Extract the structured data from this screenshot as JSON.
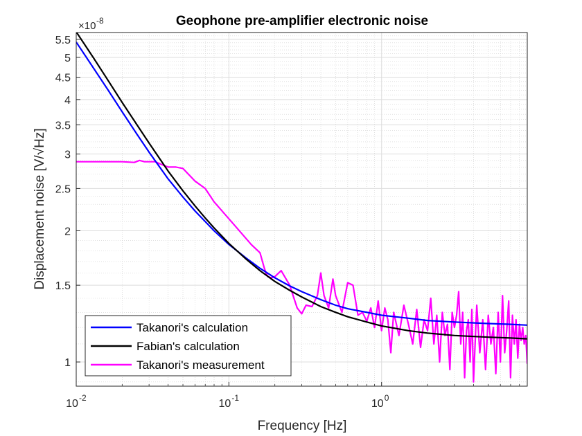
{
  "chart_data": {
    "type": "line",
    "title": "Geophone pre-amplifier electronic noise",
    "xlabel": "Frequency [Hz]",
    "ylabel": "Displacement noise [V/√Hz]",
    "y_exponent_base": "×10",
    "y_exponent_power": "-8",
    "x_scale": "log",
    "y_scale": "log",
    "xlim": [
      0.01,
      9
    ],
    "ylim": [
      0.88,
      5.7
    ],
    "x_ticks": [
      {
        "value": 0.01,
        "base": "10",
        "power": "-2"
      },
      {
        "value": 0.1,
        "base": "10",
        "power": "-1"
      },
      {
        "value": 1,
        "base": "10",
        "power": "0"
      }
    ],
    "y_ticks": [
      {
        "value": 1,
        "label": "1"
      },
      {
        "value": 1.5,
        "label": "1.5"
      },
      {
        "value": 2,
        "label": "2"
      },
      {
        "value": 2.5,
        "label": "2.5"
      },
      {
        "value": 3,
        "label": "3"
      },
      {
        "value": 3.5,
        "label": "3.5"
      },
      {
        "value": 4,
        "label": "4"
      },
      {
        "value": 4.5,
        "label": "4.5"
      },
      {
        "value": 5,
        "label": "5"
      },
      {
        "value": 5.5,
        "label": "5.5"
      }
    ],
    "grid": true,
    "minor_grid": true,
    "legend_position": "bottom-left",
    "series": [
      {
        "name": "Takanori's calculation",
        "color": "#0000ff",
        "x": [
          0.01,
          0.013,
          0.016,
          0.02,
          0.025,
          0.03,
          0.04,
          0.05,
          0.06,
          0.07,
          0.08,
          0.1,
          0.13,
          0.16,
          0.2,
          0.25,
          0.3,
          0.4,
          0.5,
          0.6,
          0.8,
          1,
          1.5,
          2,
          3,
          5,
          7,
          9
        ],
        "y": [
          5.42,
          4.72,
          4.23,
          3.75,
          3.33,
          3.03,
          2.63,
          2.39,
          2.22,
          2.1,
          2.0,
          1.86,
          1.73,
          1.64,
          1.56,
          1.495,
          1.45,
          1.39,
          1.35,
          1.325,
          1.3,
          1.28,
          1.26,
          1.245,
          1.235,
          1.225,
          1.22,
          1.215
        ]
      },
      {
        "name": "Fabian's calculation",
        "color": "#000000",
        "x": [
          0.01,
          0.013,
          0.016,
          0.02,
          0.025,
          0.03,
          0.04,
          0.05,
          0.06,
          0.07,
          0.08,
          0.1,
          0.13,
          0.16,
          0.2,
          0.25,
          0.3,
          0.4,
          0.5,
          0.6,
          0.8,
          1,
          1.5,
          2,
          3,
          5,
          7,
          9
        ],
        "y": [
          5.72,
          4.98,
          4.45,
          3.94,
          3.5,
          3.18,
          2.74,
          2.47,
          2.28,
          2.14,
          2.03,
          1.87,
          1.72,
          1.62,
          1.53,
          1.46,
          1.41,
          1.34,
          1.3,
          1.27,
          1.235,
          1.21,
          1.18,
          1.165,
          1.15,
          1.14,
          1.135,
          1.13
        ]
      },
      {
        "name": "Takanori's measurement",
        "color": "#ff00ff",
        "x": [
          0.01,
          0.015,
          0.02,
          0.024,
          0.026,
          0.028,
          0.033,
          0.036,
          0.04,
          0.045,
          0.05,
          0.06,
          0.07,
          0.08,
          0.1,
          0.12,
          0.14,
          0.16,
          0.17,
          0.175,
          0.18,
          0.19,
          0.2,
          0.22,
          0.25,
          0.28,
          0.3,
          0.32,
          0.35,
          0.38,
          0.4,
          0.42,
          0.45,
          0.48,
          0.5,
          0.55,
          0.6,
          0.65,
          0.7,
          0.75,
          0.8,
          0.85,
          0.9,
          0.95,
          1.0,
          1.05,
          1.1,
          1.15,
          1.2,
          1.3,
          1.4,
          1.5,
          1.6,
          1.7,
          1.8,
          1.9,
          2.0,
          2.1,
          2.2,
          2.3,
          2.4,
          2.5,
          2.6,
          2.7,
          2.8,
          2.9,
          3.0,
          3.1,
          3.2,
          3.3,
          3.4,
          3.5,
          3.6,
          3.7,
          3.8,
          3.9,
          4.0,
          4.2,
          4.4,
          4.6,
          4.8,
          5.0,
          5.2,
          5.4,
          5.6,
          5.8,
          6.0,
          6.2,
          6.4,
          6.6,
          6.8,
          7.0,
          7.2,
          7.4,
          7.6,
          7.8,
          8.0,
          8.2,
          8.4,
          8.6,
          8.8,
          9.0
        ],
        "y": [
          2.88,
          2.88,
          2.88,
          2.87,
          2.9,
          2.88,
          2.88,
          2.84,
          2.8,
          2.8,
          2.78,
          2.6,
          2.5,
          2.33,
          2.13,
          1.98,
          1.86,
          1.78,
          1.65,
          1.6,
          1.57,
          1.56,
          1.57,
          1.62,
          1.5,
          1.33,
          1.29,
          1.35,
          1.34,
          1.42,
          1.6,
          1.42,
          1.33,
          1.55,
          1.42,
          1.3,
          1.52,
          1.5,
          1.28,
          1.3,
          1.24,
          1.33,
          1.2,
          1.38,
          1.18,
          1.33,
          1.25,
          1.05,
          1.3,
          1.15,
          1.35,
          1.22,
          1.1,
          1.32,
          1.08,
          1.25,
          1.18,
          1.4,
          1.1,
          1.28,
          1.0,
          1.3,
          1.15,
          1.22,
          0.96,
          1.3,
          1.2,
          1.28,
          1.45,
          1.1,
          1.3,
          0.92,
          1.18,
          1.25,
          1.0,
          1.32,
          0.9,
          1.35,
          1.05,
          1.25,
          0.96,
          1.28,
          1.1,
          1.2,
          0.94,
          1.3,
          1.0,
          1.42,
          1.05,
          1.18,
          1.38,
          0.92,
          1.28,
          1.1,
          1.25,
          1.02,
          1.22,
          1.12,
          1.2,
          1.1,
          1.15,
          0.99
        ]
      }
    ]
  }
}
